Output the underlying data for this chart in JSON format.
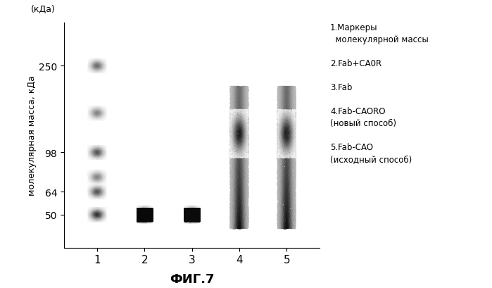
{
  "title": "ФИГ.7",
  "ylabel": "молекулярная масса, кДа",
  "ylabel_top": "(кДа)",
  "yticks": [
    50,
    64,
    98,
    250
  ],
  "ytick_labels": [
    "50",
    "64",
    "98",
    "250"
  ],
  "xticks": [
    1,
    2,
    3,
    4,
    5
  ],
  "xtick_labels": [
    "1",
    "2",
    "3",
    "4",
    "5"
  ],
  "legend_lines": [
    "1.Маркеры",
    "  молекулярной массы",
    "2.Fab+CA0R",
    "3.Fab",
    "4.Fab-CAORO",
    "(новый способ)",
    "5.Fab-CAO",
    "(исходный способ)"
  ],
  "bg_color": "#ffffff",
  "band_color_dark": "#111111",
  "band_color_medium": "#444444",
  "band_color_light": "#888888"
}
